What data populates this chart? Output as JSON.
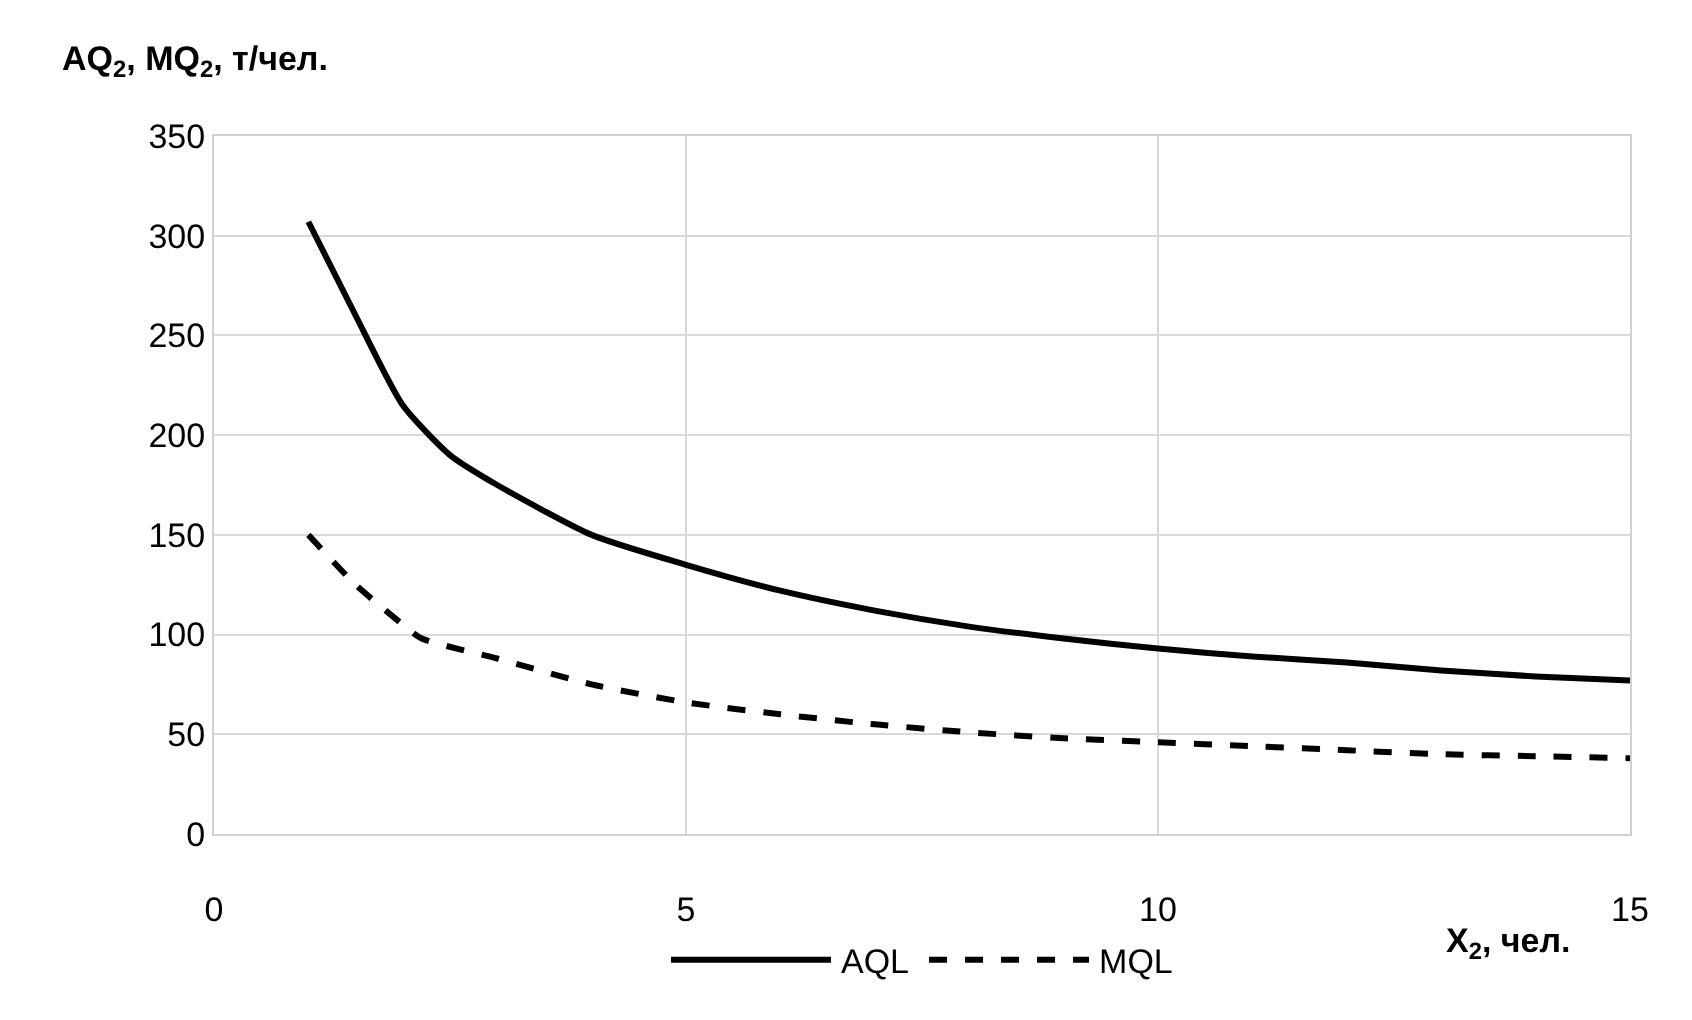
{
  "chart_data": {
    "type": "line",
    "ylabel": "AQ$_{2}$, MQ$_{2}$, т/чел.",
    "xlabel": "X$_{2}$, чел.",
    "xlim": [
      0,
      15
    ],
    "xticks": [
      0,
      5,
      10,
      15
    ],
    "ylim": [
      0,
      350
    ],
    "yticks": [
      0,
      50,
      100,
      150,
      200,
      250,
      300,
      350
    ],
    "grid": true,
    "legend": "bottom",
    "marker": "none",
    "series": [
      {
        "name": "AQL",
        "color": "#000000",
        "line_style": "solid",
        "x": [
          1,
          1.5,
          2,
          2.5,
          3,
          4,
          5,
          6,
          7,
          8,
          9,
          10,
          11,
          12,
          13,
          14,
          15
        ],
        "values": [
          307,
          260,
          215,
          190,
          175,
          150,
          135,
          122,
          112,
          104,
          98,
          93,
          89,
          86,
          82,
          79,
          77
        ]
      },
      {
        "name": "MQL",
        "color": "#000000",
        "line_style": "dashed",
        "x": [
          1,
          1.5,
          2,
          2.2,
          3,
          4,
          5,
          6,
          7,
          8,
          9,
          10,
          11,
          12,
          13,
          14,
          15
        ],
        "values": [
          150,
          125,
          105,
          98,
          88,
          75,
          66,
          60,
          55,
          51,
          48,
          46,
          44,
          42,
          40,
          39,
          38
        ]
      }
    ]
  }
}
